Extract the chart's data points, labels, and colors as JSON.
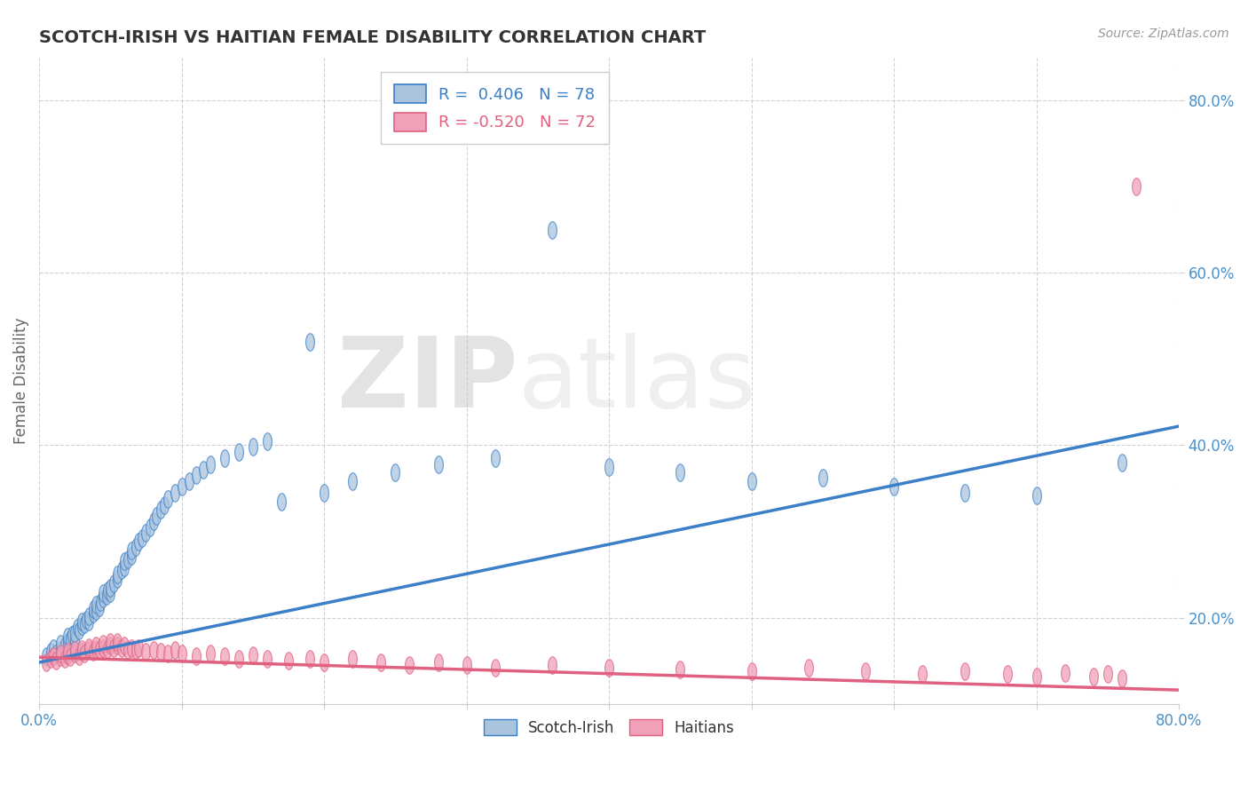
{
  "title": "SCOTCH-IRISH VS HAITIAN FEMALE DISABILITY CORRELATION CHART",
  "source_text": "Source: ZipAtlas.com",
  "ylabel": "Female Disability",
  "xlim": [
    0.0,
    0.8
  ],
  "ylim": [
    0.1,
    0.85
  ],
  "ytick_positions": [
    0.2,
    0.4,
    0.6,
    0.8
  ],
  "ytick_labels": [
    "20.0%",
    "40.0%",
    "60.0%",
    "80.0%"
  ],
  "blue_R": 0.406,
  "blue_N": 78,
  "pink_R": -0.52,
  "pink_N": 72,
  "scotch_irish_color": "#aac4de",
  "haitian_color": "#f0a0b8",
  "blue_line_color": "#3a7fc8",
  "pink_line_color": "#e06080",
  "legend_label_blue": "R =  0.406   N = 78",
  "legend_label_pink": "R = -0.520   N = 72",
  "watermark": "ZIPatlas",
  "background_color": "#ffffff",
  "grid_color": "#cccccc",
  "title_color": "#333333",
  "tick_label_color": "#4a90c8",
  "axis_label_color": "#666666",
  "blue_line_start_y": 0.148,
  "blue_line_end_y": 0.422,
  "pink_line_start_y": 0.154,
  "pink_line_end_y": 0.116,
  "scotch_irish_x": [
    0.005,
    0.008,
    0.01,
    0.012,
    0.015,
    0.015,
    0.018,
    0.02,
    0.02,
    0.022,
    0.023,
    0.025,
    0.025,
    0.027,
    0.028,
    0.03,
    0.03,
    0.032,
    0.033,
    0.035,
    0.035,
    0.038,
    0.038,
    0.04,
    0.04,
    0.042,
    0.043,
    0.045,
    0.045,
    0.047,
    0.048,
    0.05,
    0.05,
    0.052,
    0.055,
    0.055,
    0.058,
    0.06,
    0.06,
    0.062,
    0.065,
    0.065,
    0.068,
    0.07,
    0.072,
    0.075,
    0.078,
    0.08,
    0.082,
    0.085,
    0.088,
    0.09,
    0.095,
    0.1,
    0.105,
    0.11,
    0.115,
    0.12,
    0.13,
    0.14,
    0.15,
    0.16,
    0.17,
    0.19,
    0.2,
    0.22,
    0.25,
    0.28,
    0.32,
    0.36,
    0.4,
    0.45,
    0.5,
    0.55,
    0.6,
    0.65,
    0.7,
    0.76
  ],
  "scotch_irish_y": [
    0.155,
    0.16,
    0.165,
    0.158,
    0.162,
    0.17,
    0.168,
    0.172,
    0.178,
    0.175,
    0.18,
    0.174,
    0.182,
    0.188,
    0.185,
    0.19,
    0.195,
    0.192,
    0.198,
    0.195,
    0.202,
    0.205,
    0.21,
    0.208,
    0.215,
    0.212,
    0.218,
    0.222,
    0.228,
    0.225,
    0.232,
    0.228,
    0.235,
    0.24,
    0.245,
    0.25,
    0.255,
    0.258,
    0.265,
    0.268,
    0.272,
    0.278,
    0.282,
    0.288,
    0.292,
    0.298,
    0.305,
    0.312,
    0.318,
    0.325,
    0.33,
    0.338,
    0.345,
    0.352,
    0.358,
    0.365,
    0.372,
    0.378,
    0.385,
    0.392,
    0.398,
    0.405,
    0.335,
    0.52,
    0.345,
    0.358,
    0.368,
    0.378,
    0.385,
    0.65,
    0.375,
    0.368,
    0.358,
    0.362,
    0.352,
    0.345,
    0.342,
    0.38
  ],
  "haitian_x": [
    0.005,
    0.008,
    0.01,
    0.012,
    0.015,
    0.015,
    0.018,
    0.02,
    0.02,
    0.022,
    0.025,
    0.025,
    0.028,
    0.03,
    0.03,
    0.032,
    0.035,
    0.035,
    0.038,
    0.04,
    0.04,
    0.042,
    0.045,
    0.045,
    0.048,
    0.05,
    0.05,
    0.052,
    0.055,
    0.055,
    0.058,
    0.06,
    0.062,
    0.065,
    0.068,
    0.07,
    0.075,
    0.08,
    0.085,
    0.09,
    0.095,
    0.1,
    0.11,
    0.12,
    0.13,
    0.14,
    0.15,
    0.16,
    0.175,
    0.19,
    0.2,
    0.22,
    0.24,
    0.26,
    0.28,
    0.3,
    0.32,
    0.36,
    0.4,
    0.45,
    0.5,
    0.54,
    0.58,
    0.62,
    0.65,
    0.68,
    0.7,
    0.72,
    0.74,
    0.75,
    0.76,
    0.77
  ],
  "haitian_y": [
    0.148,
    0.152,
    0.155,
    0.15,
    0.154,
    0.158,
    0.152,
    0.156,
    0.16,
    0.154,
    0.158,
    0.162,
    0.155,
    0.16,
    0.164,
    0.158,
    0.162,
    0.166,
    0.16,
    0.164,
    0.168,
    0.162,
    0.165,
    0.17,
    0.164,
    0.168,
    0.172,
    0.165,
    0.168,
    0.172,
    0.165,
    0.168,
    0.162,
    0.165,
    0.162,
    0.165,
    0.16,
    0.162,
    0.16,
    0.158,
    0.162,
    0.158,
    0.155,
    0.158,
    0.155,
    0.152,
    0.156,
    0.152,
    0.15,
    0.152,
    0.148,
    0.152,
    0.148,
    0.145,
    0.148,
    0.145,
    0.142,
    0.145,
    0.142,
    0.14,
    0.138,
    0.142,
    0.138,
    0.135,
    0.138,
    0.135,
    0.132,
    0.136,
    0.132,
    0.135,
    0.13,
    0.7
  ]
}
